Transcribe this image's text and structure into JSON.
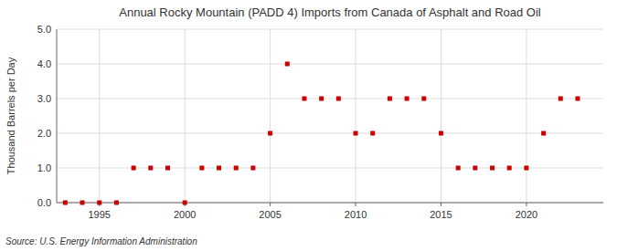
{
  "chart_data": {
    "type": "scatter",
    "title": "Annual Rocky Mountain (PADD 4) Imports from Canada of Asphalt and Road Oil",
    "y_label": "Thousand Barrels per Day",
    "source": "Source: U.S. Energy Information Administration",
    "x": [
      1993,
      1994,
      1995,
      1996,
      1997,
      1998,
      1999,
      2000,
      2001,
      2002,
      2003,
      2004,
      2005,
      2006,
      2007,
      2008,
      2009,
      2010,
      2011,
      2012,
      2013,
      2014,
      2015,
      2016,
      2017,
      2018,
      2019,
      2020,
      2021,
      2022,
      2023
    ],
    "values": [
      0.0,
      0.0,
      0.0,
      0.0,
      1.0,
      1.0,
      1.0,
      0.0,
      1.0,
      1.0,
      1.0,
      1.0,
      2.0,
      4.0,
      3.0,
      3.0,
      3.0,
      2.0,
      2.0,
      3.0,
      3.0,
      3.0,
      2.0,
      1.0,
      1.0,
      1.0,
      1.0,
      1.0,
      2.0,
      3.0,
      3.0
    ],
    "color": "#cc0000",
    "marker": "square",
    "xlim": [
      1992.5,
      2024.5
    ],
    "ylim": [
      0.0,
      5.0
    ],
    "xticks": [
      1995,
      2000,
      2005,
      2010,
      2015,
      2020
    ],
    "yticks": [
      {
        "value": 0.0,
        "label": "0.0"
      },
      {
        "value": 1.0,
        "label": "1.0"
      },
      {
        "value": 2.0,
        "label": "2.0"
      },
      {
        "value": 3.0,
        "label": "3.0"
      },
      {
        "value": 4.0,
        "label": "4.0"
      },
      {
        "value": 5.0,
        "label": "5.0"
      }
    ],
    "grid": true
  }
}
